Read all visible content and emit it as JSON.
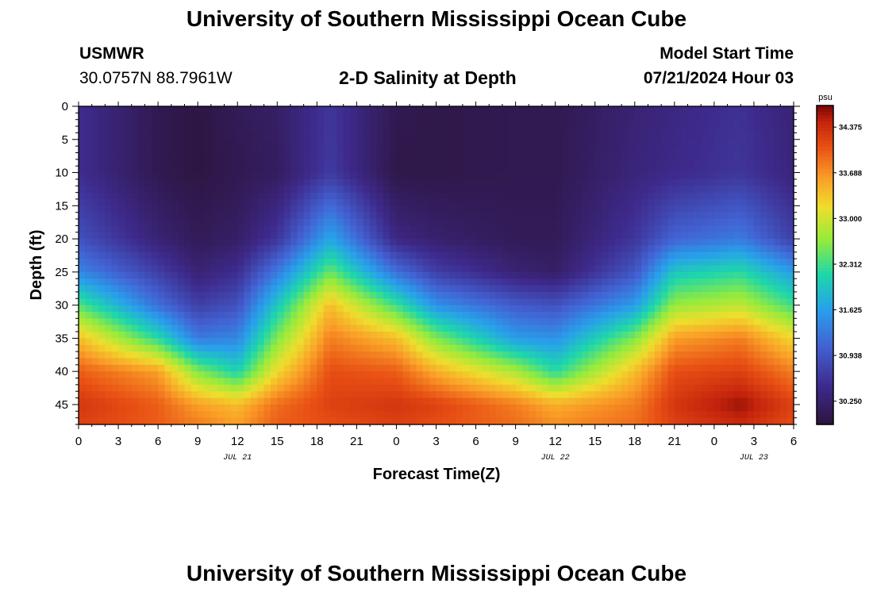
{
  "header": {
    "title": "University of Southern Mississippi Ocean Cube",
    "station": "USMWR",
    "coords": "30.0757N  88.7961W",
    "subtitle": "2-D Salinity at Depth",
    "model_label": "Model Start Time",
    "model_time": "07/21/2024 Hour 03"
  },
  "footer": {
    "title": "University of Southern Mississippi Ocean Cube"
  },
  "chart_data": {
    "type": "heatmap",
    "xlabel": "Forecast Time(Z)",
    "ylabel": "Depth (ft)",
    "x_ticks": [
      "0",
      "3",
      "6",
      "9",
      "12",
      "15",
      "18",
      "21",
      "0",
      "3",
      "6",
      "9",
      "12",
      "15",
      "18",
      "21",
      "0",
      "3",
      "6"
    ],
    "x_date_labels": [
      {
        "label": "JUL 21",
        "at_hour": 12
      },
      {
        "label": "JUL 22",
        "at_hour": 36
      },
      {
        "label": "JUL 23",
        "at_hour": 51
      }
    ],
    "xlim": [
      0,
      54
    ],
    "ylim": [
      0,
      48
    ],
    "y_inverted": true,
    "y_ticks": [
      0,
      5,
      10,
      15,
      20,
      25,
      30,
      35,
      40,
      45
    ],
    "colorbar": {
      "unit": "psu",
      "ticks": [
        "34.375",
        "33.688",
        "33.000",
        "32.312",
        "31.625",
        "30.938",
        "30.250"
      ],
      "range": [
        29.9,
        34.7
      ]
    },
    "hours": [
      0,
      6,
      9,
      12,
      15,
      19,
      24,
      27,
      33,
      36,
      42,
      45,
      50,
      54
    ],
    "depths": [
      0,
      10,
      20,
      25,
      30,
      35,
      40,
      45,
      48
    ],
    "salinity": [
      [
        30.5,
        30.05,
        29.95,
        30.1,
        30.2,
        30.6,
        30.05,
        30.0,
        30.05,
        30.05,
        30.3,
        30.4,
        30.55,
        30.3
      ],
      [
        30.5,
        30.05,
        29.95,
        30.05,
        30.15,
        30.65,
        30.0,
        30.0,
        30.05,
        30.05,
        30.35,
        30.45,
        30.6,
        30.35
      ],
      [
        30.9,
        30.3,
        30.1,
        30.2,
        30.6,
        31.7,
        30.4,
        30.25,
        30.1,
        30.1,
        30.6,
        31.1,
        31.3,
        30.7
      ],
      [
        31.4,
        30.7,
        30.3,
        30.5,
        31.3,
        32.5,
        31.2,
        30.7,
        30.3,
        30.2,
        30.95,
        32.0,
        32.2,
        31.6
      ],
      [
        32.4,
        31.2,
        30.7,
        30.9,
        32.0,
        33.4,
        32.3,
        31.5,
        31.0,
        30.9,
        31.6,
        32.7,
        32.9,
        32.3
      ],
      [
        33.4,
        32.2,
        31.3,
        31.4,
        32.6,
        33.8,
        33.4,
        32.6,
        31.6,
        31.5,
        32.6,
        33.6,
        33.8,
        33.2
      ],
      [
        34.0,
        33.6,
        32.6,
        32.1,
        33.2,
        34.1,
        34.0,
        33.5,
        32.8,
        32.2,
        33.4,
        34.1,
        34.2,
        33.8
      ],
      [
        34.3,
        34.0,
        33.6,
        33.4,
        33.9,
        34.2,
        34.3,
        34.2,
        33.8,
        33.5,
        33.8,
        34.3,
        34.6,
        34.2
      ],
      [
        34.2,
        34.0,
        33.8,
        33.6,
        34.0,
        34.1,
        34.2,
        34.1,
        33.9,
        33.7,
        33.9,
        34.2,
        34.4,
        34.1
      ]
    ]
  }
}
